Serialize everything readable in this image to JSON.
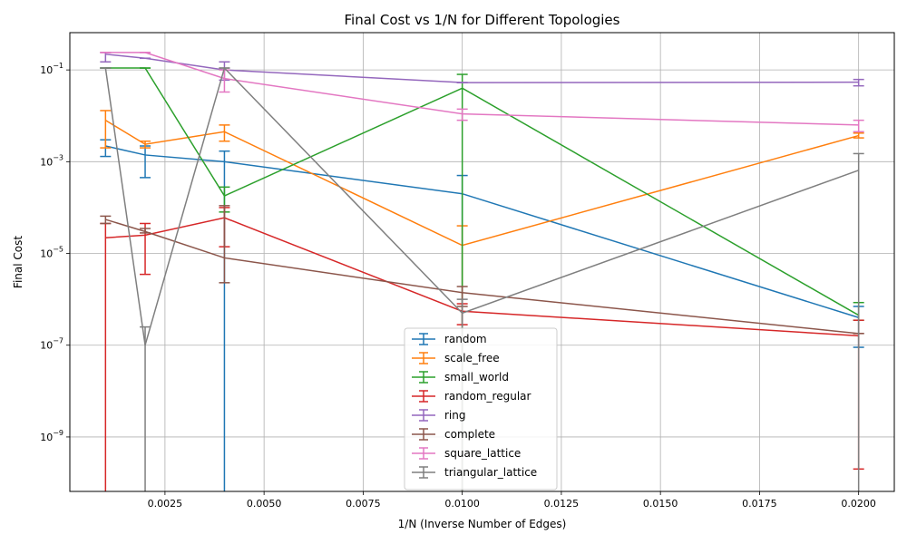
{
  "chart_data": {
    "type": "line",
    "title": "Final Cost vs 1/N for Different Topologies",
    "xlabel": "1/N (Inverse Number of Edges)",
    "ylabel": "Final Cost",
    "yscale": "log",
    "grid": true,
    "legend_position": "lower-center",
    "xlim": [
      0.0001,
      0.0209
    ],
    "ylim": [
      6.5e-11,
      0.65
    ],
    "x": [
      0.001,
      0.002,
      0.004,
      0.01,
      0.02
    ],
    "x_ticks": [
      {
        "value": 0.0025,
        "label": "0.0025"
      },
      {
        "value": 0.005,
        "label": "0.0050"
      },
      {
        "value": 0.0075,
        "label": "0.0075"
      },
      {
        "value": 0.01,
        "label": "0.0100"
      },
      {
        "value": 0.0125,
        "label": "0.0125"
      },
      {
        "value": 0.015,
        "label": "0.0150"
      },
      {
        "value": 0.0175,
        "label": "0.0175"
      },
      {
        "value": 0.02,
        "label": "0.0200"
      }
    ],
    "y_ticks": [
      {
        "value": 1e-09,
        "base": "10",
        "exp": "−9"
      },
      {
        "value": 1e-07,
        "base": "10",
        "exp": "−7"
      },
      {
        "value": 1e-05,
        "base": "10",
        "exp": "−5"
      },
      {
        "value": 0.001,
        "base": "10",
        "exp": "−3"
      },
      {
        "value": 0.1,
        "base": "10",
        "exp": "−1"
      }
    ],
    "series": [
      {
        "name": "random",
        "color": "#1f77b4",
        "values": [
          0.0022,
          0.0014,
          0.001,
          0.0002,
          4e-07
        ],
        "err_low": [
          0.0013,
          0.00045,
          1e-11,
          1e-11,
          9e-08
        ],
        "err_high": [
          0.003,
          0.0022,
          0.0017,
          0.0005,
          7e-07
        ]
      },
      {
        "name": "scale_free",
        "color": "#ff7f0e",
        "values": [
          0.008,
          0.0024,
          0.0045,
          1.5e-05,
          0.0037
        ],
        "err_low": [
          0.002,
          0.002,
          0.0028,
          1e-11,
          0.0033
        ],
        "err_high": [
          0.013,
          0.0028,
          0.0063,
          4e-05,
          0.0042
        ]
      },
      {
        "name": "small_world",
        "color": "#2ca02c",
        "values": [
          0.11,
          0.11,
          0.00018,
          0.04,
          4.5e-07
        ],
        "err_low": [
          0.11,
          0.11,
          8e-05,
          1e-11,
          3.5e-07
        ],
        "err_high": [
          0.11,
          0.11,
          0.00028,
          0.08,
          8.5e-07
        ]
      },
      {
        "name": "random_regular",
        "color": "#d62728",
        "values": [
          2.2e-05,
          2.5e-05,
          6e-05,
          5.5e-07,
          1.6e-07
        ],
        "err_low": [
          1e-11,
          3.5e-06,
          1.4e-05,
          2.8e-07,
          2e-10
        ],
        "err_high": [
          4.5e-05,
          4.5e-05,
          0.0001,
          8e-07,
          3.5e-07
        ]
      },
      {
        "name": "ring",
        "color": "#9467bd",
        "values": [
          0.22,
          0.18,
          0.1,
          0.053,
          0.054
        ],
        "err_low": [
          0.15,
          0.18,
          0.06,
          0.053,
          0.045
        ],
        "err_high": [
          0.24,
          0.18,
          0.15,
          0.053,
          0.062
        ]
      },
      {
        "name": "complete",
        "color": "#8c564b",
        "values": [
          5.5e-05,
          3e-05,
          8e-06,
          1.4e-06,
          1.8e-07
        ],
        "err_low": [
          4.5e-05,
          2.8e-05,
          2.3e-06,
          7e-07,
          1.8e-07
        ],
        "err_high": [
          6.5e-05,
          3.5e-05,
          0.00011,
          1.9e-06,
          1.8e-07
        ]
      },
      {
        "name": "square_lattice",
        "color": "#e377c2",
        "values": [
          0.24,
          0.24,
          0.065,
          0.011,
          0.0063
        ],
        "err_low": [
          0.24,
          0.24,
          0.033,
          0.008,
          0.0045
        ],
        "err_high": [
          0.24,
          0.24,
          0.1,
          0.014,
          0.008
        ]
      },
      {
        "name": "triangular_lattice",
        "color": "#7f7f7f",
        "values": [
          0.11,
          1e-07,
          0.11,
          5e-07,
          0.00065
        ],
        "err_low": [
          0.11,
          1e-11,
          0.11,
          1e-11,
          1e-11
        ],
        "err_high": [
          0.11,
          2.5e-07,
          0.11,
          1e-06,
          0.0015
        ]
      }
    ]
  }
}
